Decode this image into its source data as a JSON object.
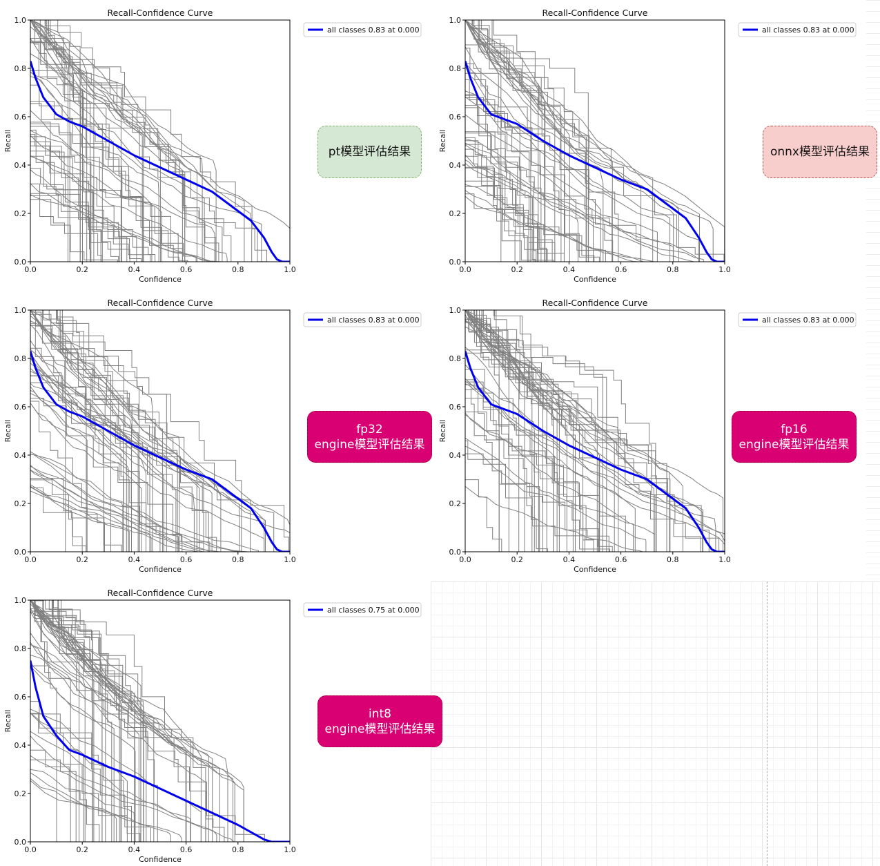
{
  "colors": {
    "overall_curve": "#0000ee",
    "class_curves": "#808080",
    "label_pt_bg": "#d5e8d4",
    "label_pt_border": "#82b366",
    "label_onnx_bg": "#f8cecc",
    "label_onnx_border": "#b85450",
    "label_engine_bg": "#d80073",
    "label_engine_border": "#a50040"
  },
  "labels": {
    "pt": "pt模型评估结果",
    "onnx": "onnx模型评估结果",
    "fp32": "fp32\nengine模型评估结果",
    "fp16": "fp16\nengine模型评估结果",
    "int8": "int8\nengine模型评估结果"
  },
  "chart_data": [
    {
      "type": "line",
      "title": "Recall-Confidence Curve",
      "xlabel": "Confidence",
      "ylabel": "Recall",
      "xlim": [
        0,
        1
      ],
      "ylim": [
        0,
        1
      ],
      "xticks": [
        "0.0",
        "0.2",
        "0.4",
        "0.6",
        "0.8",
        "1.0"
      ],
      "yticks": [
        "0.0",
        "0.2",
        "0.4",
        "0.6",
        "0.8",
        "1.0"
      ],
      "legend": "top-right",
      "grid": false,
      "series": [
        {
          "name": "all classes 0.83 at 0.000",
          "x": [
            0,
            0.02,
            0.05,
            0.1,
            0.15,
            0.2,
            0.3,
            0.4,
            0.5,
            0.6,
            0.7,
            0.8,
            0.85,
            0.9,
            0.93,
            0.95,
            0.97,
            1.0
          ],
          "y": [
            0.83,
            0.76,
            0.68,
            0.61,
            0.58,
            0.56,
            0.5,
            0.44,
            0.39,
            0.34,
            0.29,
            0.21,
            0.17,
            0.1,
            0.04,
            0.01,
            0.0,
            0.0
          ]
        }
      ]
    },
    {
      "type": "line",
      "title": "Recall-Confidence Curve",
      "xlabel": "Confidence",
      "ylabel": "Recall",
      "xlim": [
        0,
        1
      ],
      "ylim": [
        0,
        1
      ],
      "xticks": [
        "0.0",
        "0.2",
        "0.4",
        "0.6",
        "0.8",
        "1.0"
      ],
      "yticks": [
        "0.0",
        "0.2",
        "0.4",
        "0.6",
        "0.8",
        "1.0"
      ],
      "legend": "top-right",
      "grid": false,
      "series": [
        {
          "name": "all classes 0.83 at 0.000",
          "x": [
            0,
            0.02,
            0.05,
            0.1,
            0.15,
            0.2,
            0.3,
            0.4,
            0.5,
            0.6,
            0.7,
            0.8,
            0.85,
            0.9,
            0.93,
            0.95,
            0.97,
            1.0
          ],
          "y": [
            0.83,
            0.76,
            0.68,
            0.61,
            0.59,
            0.57,
            0.5,
            0.44,
            0.39,
            0.34,
            0.3,
            0.22,
            0.18,
            0.1,
            0.04,
            0.01,
            0.0,
            0.0
          ]
        }
      ]
    },
    {
      "type": "line",
      "title": "Recall-Confidence Curve",
      "xlabel": "Confidence",
      "ylabel": "Recall",
      "xlim": [
        0,
        1
      ],
      "ylim": [
        0,
        1
      ],
      "xticks": [
        "0.0",
        "0.2",
        "0.4",
        "0.6",
        "0.8",
        "1.0"
      ],
      "yticks": [
        "0.0",
        "0.2",
        "0.4",
        "0.6",
        "0.8",
        "1.0"
      ],
      "legend": "top-right",
      "grid": false,
      "series": [
        {
          "name": "all classes 0.83 at 0.000",
          "x": [
            0,
            0.02,
            0.05,
            0.1,
            0.15,
            0.2,
            0.3,
            0.4,
            0.5,
            0.6,
            0.7,
            0.8,
            0.85,
            0.9,
            0.93,
            0.95,
            0.97,
            1.0
          ],
          "y": [
            0.83,
            0.76,
            0.68,
            0.61,
            0.58,
            0.56,
            0.5,
            0.44,
            0.39,
            0.34,
            0.3,
            0.22,
            0.18,
            0.1,
            0.04,
            0.01,
            0.0,
            0.0
          ]
        }
      ]
    },
    {
      "type": "line",
      "title": "Recall-Confidence Curve",
      "xlabel": "Confidence",
      "ylabel": "Recall",
      "xlim": [
        0,
        1
      ],
      "ylim": [
        0,
        1
      ],
      "xticks": [
        "0.0",
        "0.2",
        "0.4",
        "0.6",
        "0.8",
        "1.0"
      ],
      "yticks": [
        "0.0",
        "0.2",
        "0.4",
        "0.6",
        "0.8",
        "1.0"
      ],
      "legend": "top-right",
      "grid": false,
      "series": [
        {
          "name": "all classes 0.83 at 0.000",
          "x": [
            0,
            0.02,
            0.05,
            0.1,
            0.15,
            0.2,
            0.3,
            0.4,
            0.5,
            0.6,
            0.7,
            0.8,
            0.85,
            0.9,
            0.93,
            0.95,
            0.97,
            1.0
          ],
          "y": [
            0.83,
            0.76,
            0.68,
            0.61,
            0.59,
            0.57,
            0.5,
            0.44,
            0.39,
            0.34,
            0.3,
            0.22,
            0.18,
            0.1,
            0.04,
            0.01,
            0.0,
            0.0
          ]
        }
      ]
    },
    {
      "type": "line",
      "title": "Recall-Confidence Curve",
      "xlabel": "Confidence",
      "ylabel": "Recall",
      "xlim": [
        0,
        1
      ],
      "ylim": [
        0,
        1
      ],
      "xticks": [
        "0.0",
        "0.2",
        "0.4",
        "0.6",
        "0.8",
        "1.0"
      ],
      "yticks": [
        "0.0",
        "0.2",
        "0.4",
        "0.6",
        "0.8",
        "1.0"
      ],
      "legend": "top-right",
      "grid": false,
      "series": [
        {
          "name": "all classes 0.75 at 0.000",
          "x": [
            0,
            0.02,
            0.05,
            0.1,
            0.15,
            0.2,
            0.3,
            0.4,
            0.5,
            0.6,
            0.7,
            0.8,
            0.85,
            0.9,
            0.93,
            0.95,
            0.97,
            1.0
          ],
          "y": [
            0.75,
            0.64,
            0.52,
            0.44,
            0.38,
            0.36,
            0.31,
            0.27,
            0.22,
            0.17,
            0.12,
            0.07,
            0.04,
            0.01,
            0.0,
            0.0,
            0.0,
            0.0
          ]
        }
      ]
    }
  ]
}
